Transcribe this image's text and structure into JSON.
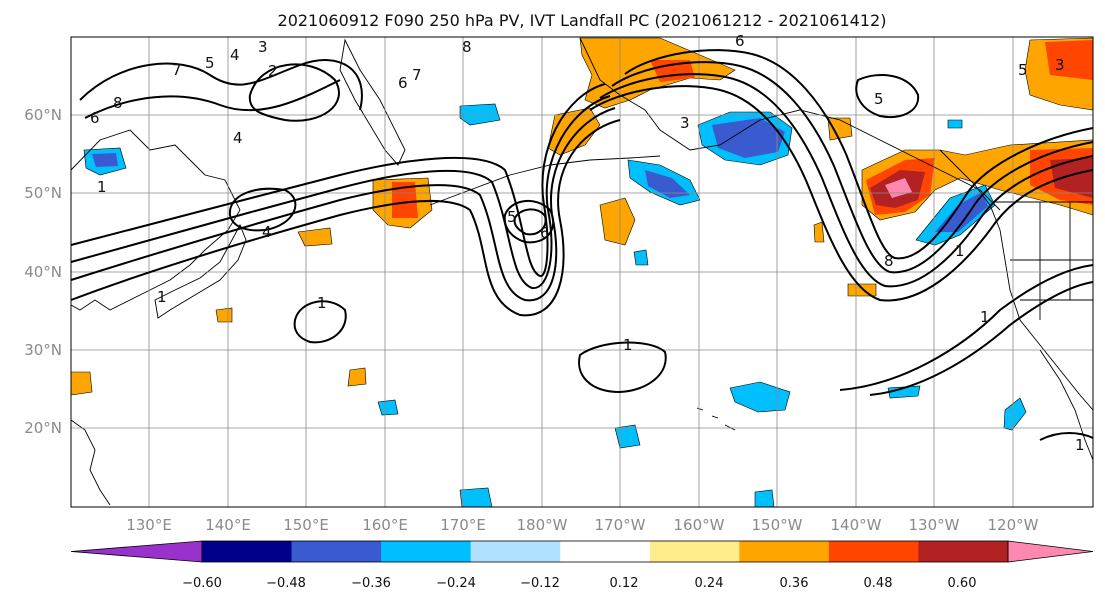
{
  "title": "2021060912 F090 250 hPa PV, IVT Landfall PC (2021061212 - 2021061412)",
  "lat_ticks": [
    "60°N",
    "50°N",
    "40°N",
    "30°N",
    "20°N"
  ],
  "lon_ticks": [
    "130°E",
    "140°E",
    "150°E",
    "160°E",
    "170°E",
    "180°W",
    "170°W",
    "160°W",
    "150°W",
    "140°W",
    "130°W",
    "120°W"
  ],
  "colorbar": {
    "tick_labels": [
      "−0.60",
      "−0.48",
      "−0.36",
      "−0.24",
      "−0.12",
      "0.12",
      "0.24",
      "0.36",
      "0.48",
      "0.60"
    ],
    "colors": [
      "#9932cc",
      "#00008b",
      "#3a5bd0",
      "#00bfff",
      "#b0e2ff",
      "#ffffff",
      "#ffec8b",
      "#ffa500",
      "#ff4500",
      "#b22222",
      "#ff88b0"
    ]
  },
  "contour_labels": [
    "8",
    "6",
    "7",
    "5",
    "4",
    "3",
    "2",
    "6",
    "7",
    "1",
    "4",
    "4",
    "1",
    "1",
    "5",
    "6",
    "1",
    "8",
    "6",
    "5",
    "3",
    "8",
    "1",
    "1",
    "1",
    "3",
    "5"
  ],
  "colors": {
    "land_outline": "#000000",
    "grid": "#8a8a8a",
    "contour": "#000000"
  }
}
